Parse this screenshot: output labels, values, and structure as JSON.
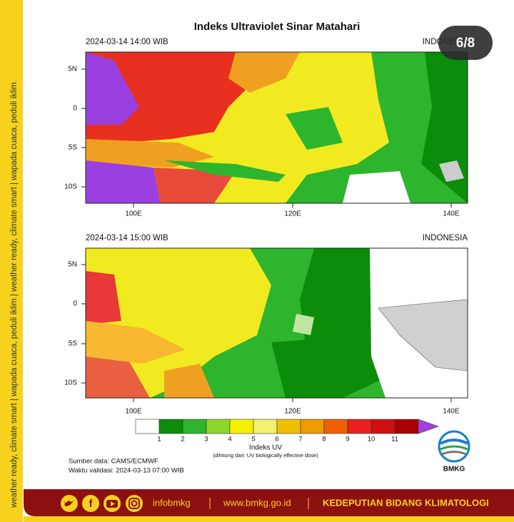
{
  "side_strip": "weather ready, climate smart  |  wapada cuaca, peduli iklim  |  weather ready, climate smart  |  wapada cuaca, peduli iklim",
  "badge": "6/8",
  "title": "Indeks Ultraviolet Sinar Matahari",
  "maps": [
    {
      "datetime": "2024-03-14  14:00 WIB",
      "region": "INDONESIA",
      "lat_ticks": [
        "5N",
        "0",
        "5S",
        "10S"
      ],
      "lon_ticks": [
        "100E",
        "120E",
        "140E"
      ]
    },
    {
      "datetime": "2024-03-14  15:00 WIB",
      "region": "INDONESIA",
      "lat_ticks": [
        "5N",
        "0",
        "5S",
        "10S"
      ],
      "lon_ticks": [
        "100E",
        "120E",
        "140E"
      ]
    }
  ],
  "colorbar": {
    "labels": [
      1,
      2,
      3,
      4,
      5,
      6,
      7,
      8,
      9,
      10,
      11
    ],
    "colors": [
      "#ffffff",
      "#0b8c0b",
      "#2db52d",
      "#8fd62a",
      "#f4f000",
      "#f4f070",
      "#f0c000",
      "#f09a00",
      "#f06000",
      "#e82020",
      "#d01010",
      "#a80000",
      "#a040e0"
    ],
    "title": "Indeks UV",
    "note": "(dihitung dari: UV biologically effective dose)"
  },
  "source": "Sumber data: CAMS/ECMWF",
  "validity": "Waktu validasi: 2024-03-13 07:00 WIB",
  "logo": "BMKG",
  "footer": {
    "handle": "infobmkg",
    "url": "www.bmkg.go.id",
    "department": "KEDEPUTIAN BIDANG KLIMATOLOGI"
  }
}
